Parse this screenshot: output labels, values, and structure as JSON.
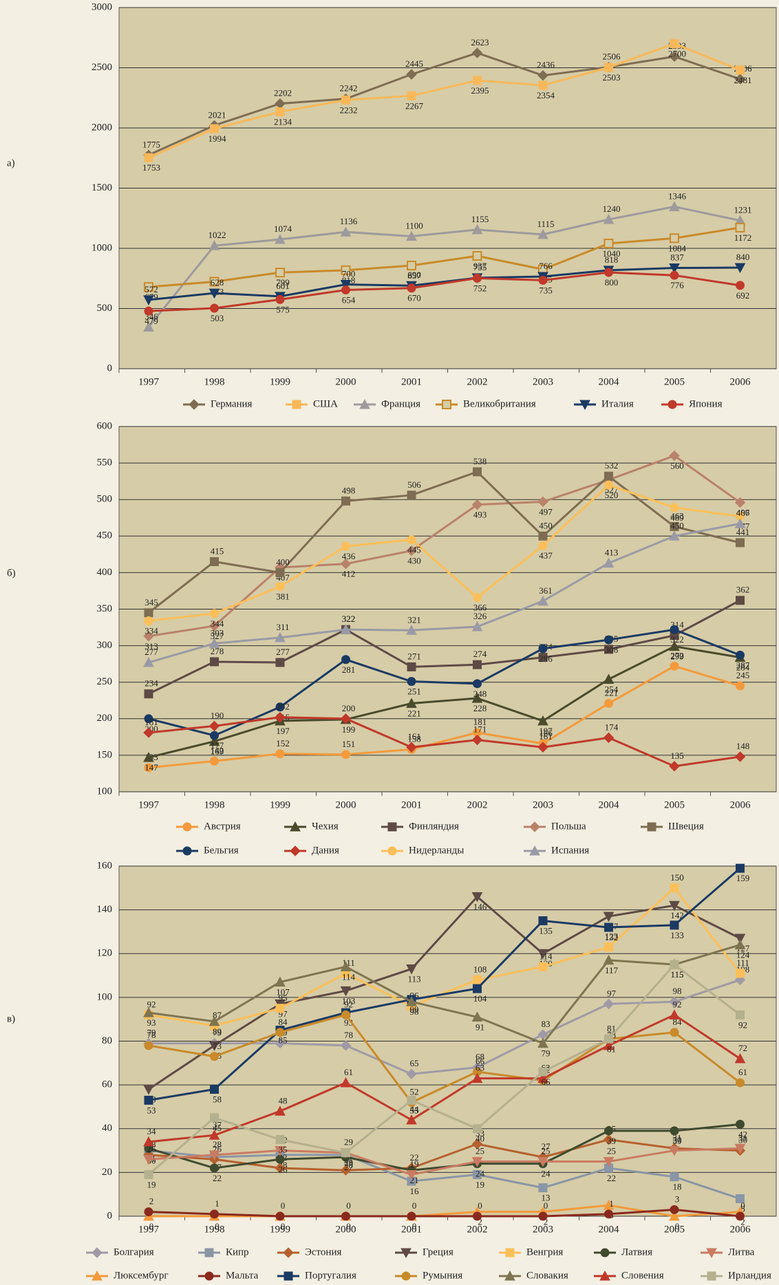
{
  "chart_data": [
    {
      "type": "line",
      "label": "а)",
      "categories": [
        "1997",
        "1998",
        "1999",
        "2000",
        "2001",
        "2002",
        "2003",
        "2004",
        "2005",
        "2006"
      ],
      "ylim": [
        0,
        3000
      ],
      "yticks": [
        0,
        500,
        1000,
        1500,
        2000,
        2500,
        3000
      ],
      "grid": true,
      "series": [
        {
          "name": "Германия",
          "color": "#7e6d52",
          "marker": "diamond",
          "values": [
            1775,
            2021,
            2202,
            2242,
            2445,
            2623,
            2436,
            2506,
            2593,
            2406
          ]
        },
        {
          "name": "США",
          "color": "#f8b85a",
          "marker": "square",
          "values": [
            1753,
            1994,
            2134,
            2232,
            2267,
            2395,
            2354,
            2503,
            2700,
            2481
          ]
        },
        {
          "name": "Франция",
          "color": "#9e9a9c",
          "marker": "triangle",
          "values": [
            346,
            1022,
            1074,
            1136,
            1100,
            1155,
            1115,
            1240,
            1346,
            1231
          ]
        },
        {
          "name": "Великобритания",
          "color": "#c98a2a",
          "marker": "hollow-square",
          "values": [
            679,
            723,
            799,
            818,
            857,
            937,
            825,
            1040,
            1084,
            1172
          ]
        },
        {
          "name": "Италия",
          "color": "#1a3a63",
          "marker": "triangle-down",
          "values": [
            572,
            628,
            601,
            700,
            690,
            755,
            766,
            818,
            837,
            840
          ]
        },
        {
          "name": "Япония",
          "color": "#c0392b",
          "marker": "circle",
          "values": [
            479,
            503,
            575,
            654,
            670,
            752,
            735,
            800,
            776,
            692
          ]
        }
      ]
    },
    {
      "type": "line",
      "label": "б)",
      "categories": [
        "1997",
        "1998",
        "1999",
        "2000",
        "2001",
        "2002",
        "2003",
        "2004",
        "2005",
        "2006"
      ],
      "ylim": [
        100,
        600
      ],
      "yticks": [
        100,
        150,
        200,
        250,
        300,
        350,
        400,
        450,
        500,
        550,
        600
      ],
      "grid": true,
      "series": [
        {
          "name": "Австрия",
          "color": "#f39a3c",
          "marker": "circle",
          "values": [
            133,
            142,
            152,
            151,
            158,
            181,
            166,
            221,
            272,
            245
          ]
        },
        {
          "name": "Чехия",
          "color": "#4a4a2c",
          "marker": "triangle",
          "values": [
            147,
            169,
            197,
            199,
            221,
            228,
            197,
            254,
            299,
            284
          ]
        },
        {
          "name": "Финляндия",
          "color": "#5e4a45",
          "marker": "square",
          "values": [
            234,
            278,
            277,
            322,
            271,
            274,
            284,
            295,
            314,
            362
          ]
        },
        {
          "name": "Польша",
          "color": "#b9826a",
          "marker": "diamond",
          "values": [
            313,
            327,
            407,
            412,
            430,
            493,
            497,
            527,
            560,
            496
          ]
        },
        {
          "name": "Швеция",
          "color": "#7e6d52",
          "marker": "square",
          "values": [
            345,
            415,
            400,
            498,
            506,
            538,
            450,
            532,
            463,
            441
          ]
        },
        {
          "name": "Бельгия",
          "color": "#1a3a63",
          "marker": "circle",
          "values": [
            200,
            177,
            216,
            281,
            251,
            248,
            296,
            308,
            322,
            287
          ]
        },
        {
          "name": "Дания",
          "color": "#c0392b",
          "marker": "diamond",
          "values": [
            181,
            190,
            202,
            200,
            161,
            171,
            161,
            174,
            135,
            148
          ]
        },
        {
          "name": "Нидерланды",
          "color": "#fbbf5a",
          "marker": "circle",
          "values": [
            334,
            344,
            381,
            436,
            445,
            366,
            437,
            520,
            489,
            477
          ]
        },
        {
          "name": "Испания",
          "color": "#9a9aa6",
          "marker": "triangle",
          "values": [
            277,
            303,
            311,
            322,
            321,
            326,
            361,
            413,
            450,
            467
          ]
        }
      ]
    },
    {
      "type": "line",
      "label": "в)",
      "categories": [
        "1997",
        "1998",
        "1999",
        "2000",
        "2001",
        "2002",
        "2003",
        "2004",
        "2005",
        "2006"
      ],
      "ylim": [
        0,
        160
      ],
      "yticks": [
        0,
        20,
        40,
        60,
        80,
        100,
        120,
        140,
        160
      ],
      "grid": true,
      "series": [
        {
          "name": "Болгария",
          "color": "#a09aa6",
          "marker": "diamond",
          "values": [
            79,
            79,
            79,
            78,
            65,
            68,
            83,
            97,
            98,
            108
          ]
        },
        {
          "name": "Кипр",
          "color": "#8a96a6",
          "marker": "square",
          "values": [
            30,
            27,
            28,
            28,
            16,
            19,
            13,
            22,
            18,
            8
          ]
        },
        {
          "name": "Эстония",
          "color": "#b5612e",
          "marker": "diamond",
          "values": [
            28,
            26,
            22,
            21,
            22,
            33,
            27,
            35,
            31,
            30
          ]
        },
        {
          "name": "Греция",
          "color": "#5e4a45",
          "marker": "triangle-down",
          "values": [
            58,
            78,
            97,
            103,
            113,
            146,
            120,
            137,
            142,
            127
          ]
        },
        {
          "name": "Венгрия",
          "color": "#fbbf5a",
          "marker": "square",
          "values": [
            92,
            87,
            95,
            111,
            96,
            108,
            114,
            123,
            150,
            111
          ]
        },
        {
          "name": "Латвия",
          "color": "#3f4a2e",
          "marker": "circle",
          "values": [
            31,
            22,
            26,
            27,
            21,
            24,
            24,
            39,
            39,
            42
          ]
        },
        {
          "name": "Литва",
          "color": "#c97b62",
          "marker": "triangle-down",
          "values": [
            26,
            28,
            30,
            29,
            19,
            25,
            25,
            25,
            30,
            31
          ]
        },
        {
          "name": "Люксембург",
          "color": "#f39a3c",
          "marker": "triangle",
          "values": [
            0,
            0,
            0,
            0,
            0,
            2,
            2,
            5,
            0,
            2
          ]
        },
        {
          "name": "Мальта",
          "color": "#8a2a1e",
          "marker": "circle",
          "values": [
            2,
            1,
            0,
            0,
            0,
            0,
            0,
            1,
            3,
            0
          ]
        },
        {
          "name": "Португалия",
          "color": "#1a3a63",
          "marker": "square",
          "values": [
            53,
            58,
            85,
            93,
            99,
            104,
            135,
            132,
            133,
            159
          ]
        },
        {
          "name": "Румыния",
          "color": "#c98a2a",
          "marker": "circle",
          "values": [
            78,
            73,
            84,
            92,
            52,
            66,
            62,
            81,
            84,
            61
          ]
        },
        {
          "name": "Словакия",
          "color": "#7e7550",
          "marker": "triangle",
          "values": [
            93,
            89,
            107,
            114,
            98,
            91,
            79,
            117,
            115,
            124
          ]
        },
        {
          "name": "Словения",
          "color": "#c0392b",
          "marker": "triangle",
          "values": [
            34,
            37,
            48,
            61,
            44,
            63,
            63,
            78,
            92,
            72
          ]
        },
        {
          "name": "Ирландия",
          "color": "#b5b08e",
          "marker": "square",
          "values": [
            19,
            45,
            35,
            29,
            53,
            40,
            66,
            81,
            115,
            92
          ]
        }
      ]
    }
  ]
}
